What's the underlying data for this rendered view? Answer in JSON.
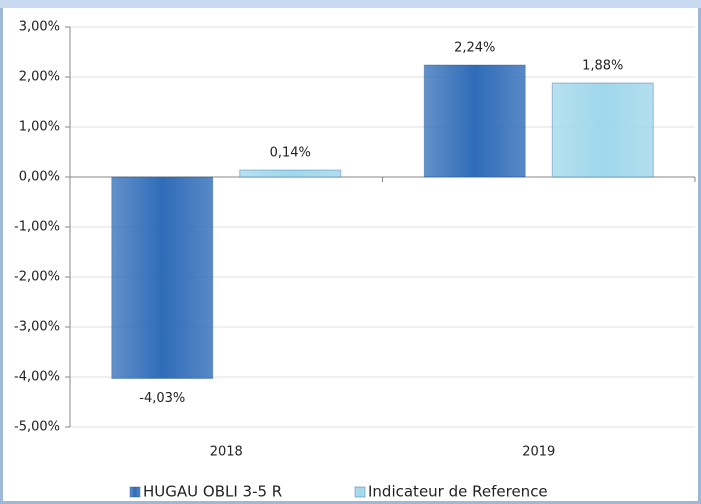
{
  "chart_data": {
    "type": "bar",
    "categories": [
      "2018",
      "2019"
    ],
    "series": [
      {
        "name": "HUGAU OBLI 3-5 R",
        "color": "#2f6cb8",
        "values": [
          -4.03,
          2.24
        ],
        "value_labels": [
          "-4,03%",
          "2,24%"
        ]
      },
      {
        "name": "Indicateur de Reference",
        "color": "#9fd7eb",
        "values": [
          0.14,
          1.88
        ],
        "value_labels": [
          "0,14%",
          "1,88%"
        ]
      }
    ],
    "ylim": [
      -5,
      3
    ],
    "yticks": [
      {
        "value": -5,
        "label": "-5,00%"
      },
      {
        "value": -4,
        "label": "-4,00%"
      },
      {
        "value": -3,
        "label": "-3,00%"
      },
      {
        "value": -2,
        "label": "-2,00%"
      },
      {
        "value": -1,
        "label": "-1,00%"
      },
      {
        "value": 0,
        "label": "0,00%"
      },
      {
        "value": 1,
        "label": "1,00%"
      },
      {
        "value": 2,
        "label": "2,00%"
      },
      {
        "value": 3,
        "label": "3,00%"
      }
    ],
    "grid": true,
    "legend": "bottom"
  }
}
